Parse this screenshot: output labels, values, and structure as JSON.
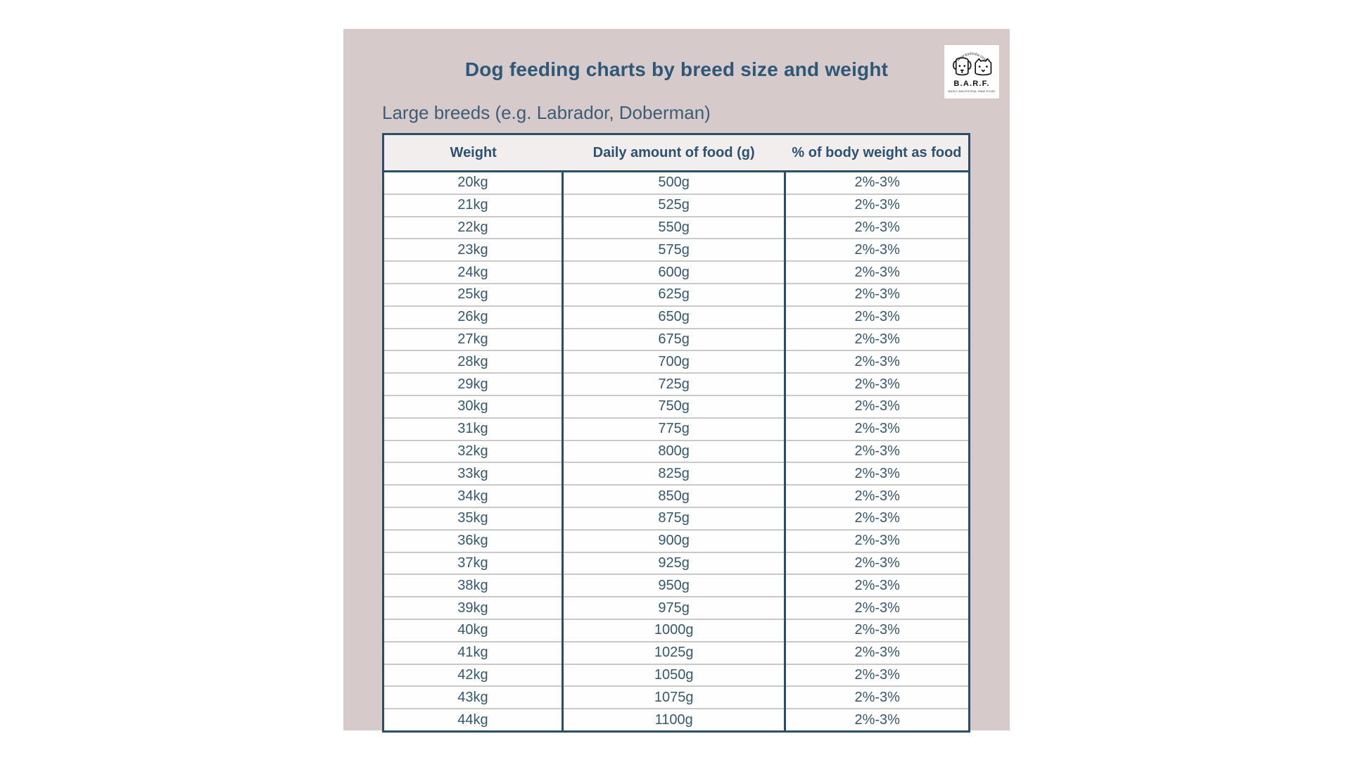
{
  "page": {
    "title": "Dog feeding charts by breed size and weight",
    "subtitle": "Large breeds (e.g. Labrador, Doberman)"
  },
  "logo": {
    "arc_text": "www.barfindia.com",
    "name": "B.A.R.F.",
    "tagline": "BASIC ANCESTRAL RAW FOOD"
  },
  "colors": {
    "page_background": "#ffffff",
    "panel_background": "#d6caca",
    "accent_dark_blue": "#2d5878",
    "table_border": "#2a4e66",
    "row_divider": "#c9c9c9",
    "header_background": "#f3eeee",
    "row_background": "#fefefe"
  },
  "chart_data": {
    "type": "table",
    "title": "Dog feeding charts by breed size and weight",
    "subtitle": "Large breeds (e.g. Labrador, Doberman)",
    "columns": [
      "Weight",
      "Daily amount of food (g)",
      "% of body weight as food"
    ],
    "rows": [
      [
        "20kg",
        "500g",
        "2%-3%"
      ],
      [
        "21kg",
        "525g",
        "2%-3%"
      ],
      [
        "22kg",
        "550g",
        "2%-3%"
      ],
      [
        "23kg",
        "575g",
        "2%-3%"
      ],
      [
        "24kg",
        "600g",
        "2%-3%"
      ],
      [
        "25kg",
        "625g",
        "2%-3%"
      ],
      [
        "26kg",
        "650g",
        "2%-3%"
      ],
      [
        "27kg",
        "675g",
        "2%-3%"
      ],
      [
        "28kg",
        "700g",
        "2%-3%"
      ],
      [
        "29kg",
        "725g",
        "2%-3%"
      ],
      [
        "30kg",
        "750g",
        "2%-3%"
      ],
      [
        "31kg",
        "775g",
        "2%-3%"
      ],
      [
        "32kg",
        "800g",
        "2%-3%"
      ],
      [
        "33kg",
        "825g",
        "2%-3%"
      ],
      [
        "34kg",
        "850g",
        "2%-3%"
      ],
      [
        "35kg",
        "875g",
        "2%-3%"
      ],
      [
        "36kg",
        "900g",
        "2%-3%"
      ],
      [
        "37kg",
        "925g",
        "2%-3%"
      ],
      [
        "38kg",
        "950g",
        "2%-3%"
      ],
      [
        "39kg",
        "975g",
        "2%-3%"
      ],
      [
        "40kg",
        "1000g",
        "2%-3%"
      ],
      [
        "41kg",
        "1025g",
        "2%-3%"
      ],
      [
        "42kg",
        "1050g",
        "2%-3%"
      ],
      [
        "43kg",
        "1075g",
        "2%-3%"
      ],
      [
        "44kg",
        "1100g",
        "2%-3%"
      ]
    ]
  }
}
